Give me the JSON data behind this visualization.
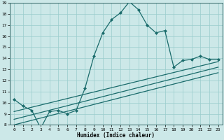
{
  "xlabel": "Humidex (Indice chaleur)",
  "bg_color": "#cce8e8",
  "grid_color": "#99cccc",
  "line_color": "#1a6b6b",
  "xlim": [
    -0.5,
    23.5
  ],
  "ylim": [
    8,
    19
  ],
  "xticks": [
    0,
    1,
    2,
    3,
    4,
    5,
    6,
    7,
    8,
    9,
    10,
    11,
    12,
    13,
    14,
    15,
    16,
    17,
    18,
    19,
    20,
    21,
    22,
    23
  ],
  "yticks": [
    8,
    9,
    10,
    11,
    12,
    13,
    14,
    15,
    16,
    17,
    18,
    19
  ],
  "line1_x": [
    0,
    1,
    2,
    3,
    4,
    5,
    6,
    7,
    8,
    9,
    10,
    11,
    12,
    13,
    14,
    15,
    16,
    17,
    18,
    19,
    20,
    21,
    22,
    23
  ],
  "line1_y": [
    10.3,
    9.7,
    9.3,
    7.7,
    9.2,
    9.3,
    9.0,
    9.3,
    11.3,
    14.2,
    16.3,
    17.5,
    18.1,
    19.1,
    18.4,
    17.0,
    16.3,
    16.5,
    13.2,
    13.8,
    13.9,
    14.2,
    13.9,
    13.9
  ],
  "line2_x": [
    0,
    23
  ],
  "line2_y": [
    9.2,
    13.7
  ],
  "line3_x": [
    0,
    23
  ],
  "line3_y": [
    8.5,
    13.2
  ],
  "line4_x": [
    0,
    23
  ],
  "line4_y": [
    8.0,
    12.7
  ]
}
